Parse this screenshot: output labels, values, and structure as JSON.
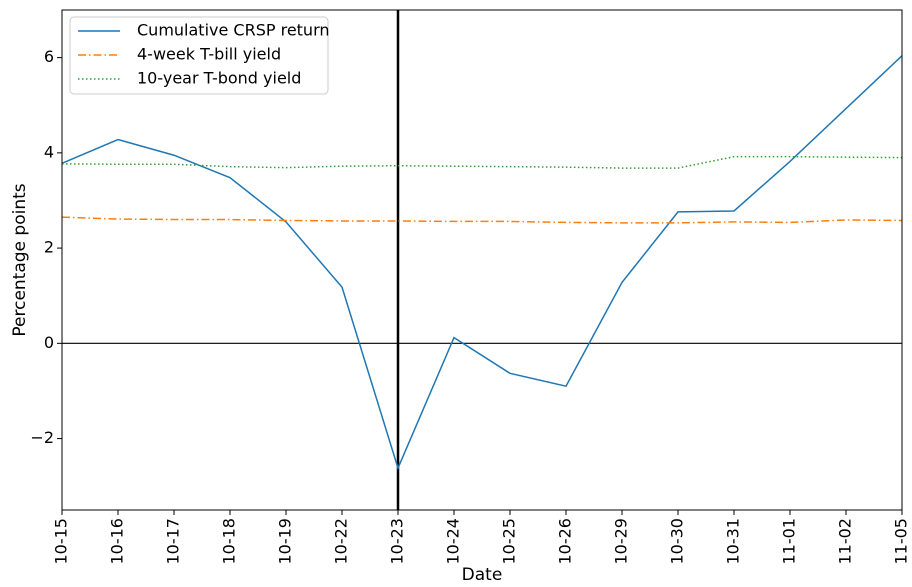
{
  "chart_data": {
    "type": "line",
    "categories": [
      "10-15",
      "10-16",
      "10-17",
      "10-18",
      "10-19",
      "10-22",
      "10-23",
      "10-24",
      "10-25",
      "10-26",
      "10-29",
      "10-30",
      "10-31",
      "11-01",
      "11-02",
      "11-05"
    ],
    "series": [
      {
        "name": "Cumulative CRSP return",
        "color": "#1f77b4",
        "dash": "solid",
        "values": [
          3.78,
          4.28,
          3.95,
          3.48,
          2.55,
          1.18,
          -2.62,
          0.12,
          -0.63,
          -0.9,
          1.28,
          2.76,
          2.78,
          3.82,
          4.93,
          6.04
        ]
      },
      {
        "name": "4-week T-bill yield",
        "color": "#ff7f0e",
        "dash": "dashdot",
        "values": [
          2.65,
          2.61,
          2.6,
          2.6,
          2.58,
          2.57,
          2.57,
          2.56,
          2.56,
          2.54,
          2.53,
          2.53,
          2.55,
          2.54,
          2.59,
          2.58
        ]
      },
      {
        "name": "10-year T-bond yield",
        "color": "#2ca02c",
        "dash": "dotted",
        "values": [
          3.77,
          3.76,
          3.76,
          3.71,
          3.69,
          3.72,
          3.73,
          3.72,
          3.71,
          3.7,
          3.68,
          3.68,
          3.92,
          3.92,
          3.91,
          3.9
        ]
      }
    ],
    "xlabel": "Date",
    "ylabel": "Percentage points",
    "ylim": [
      -3.5,
      7
    ],
    "yticks": [
      {
        "value": -2,
        "label": "−2"
      },
      0,
      2,
      4,
      6
    ],
    "hline": 0,
    "vline": "10-23",
    "legend": "upper left"
  }
}
